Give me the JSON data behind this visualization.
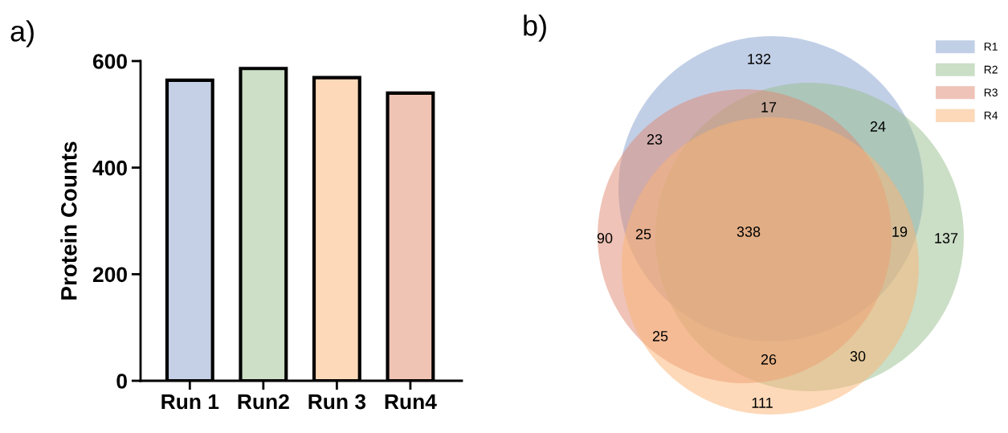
{
  "chart_data": [
    {
      "type": "bar",
      "title": "a)",
      "ylabel": "Protein Counts",
      "categories": [
        "Run 1",
        "Run2",
        "Run 3",
        "Run4"
      ],
      "values": [
        564,
        586,
        569,
        540
      ],
      "colors": [
        "#c5d0e6",
        "#cddfc7",
        "#fdd9b9",
        "#f0c4b4"
      ],
      "ylim": [
        0,
        600
      ],
      "yticks": [
        0,
        200,
        400,
        600
      ],
      "grid": false
    },
    {
      "type": "other",
      "title": "b)",
      "legend": "top right",
      "series": [
        {
          "name": "R1",
          "color": "#839fcd"
        },
        {
          "name": "R2",
          "color": "#97bd8d"
        },
        {
          "name": "R3",
          "color": "#df876f"
        },
        {
          "name": "R4",
          "color": "#fbb373"
        }
      ],
      "annotations": [
        "132",
        "17",
        "24",
        "23",
        "90",
        "25",
        "338",
        "19",
        "137",
        "25",
        "26",
        "30",
        "111"
      ]
    }
  ]
}
